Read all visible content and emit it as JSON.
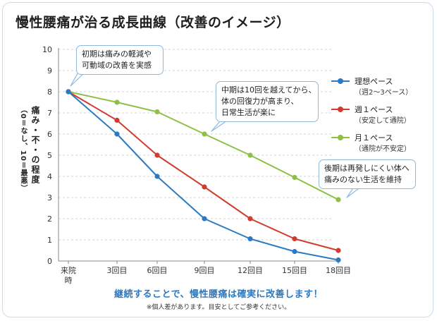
{
  "title": "慢性腰痛が治る成長曲線（改善のイメージ）",
  "chart_data": {
    "type": "line",
    "title": "慢性腰痛が治る成長曲線（改善のイメージ）",
    "ylabel": "痛み・不・の程度",
    "ylabel_sub": "（0＝なし、10＝最悪）",
    "xlabel": "",
    "ylim": [
      0,
      10
    ],
    "yticks": [
      "0",
      "1",
      "2",
      "3",
      "4",
      "5",
      "6",
      "7",
      "8",
      "9",
      "10"
    ],
    "categories": [
      "来院時",
      "3回目",
      "6回目",
      "9回目",
      "12回目",
      "15回目",
      "18回目"
    ],
    "grid": true,
    "legend_position": "right",
    "series": [
      {
        "name": "理想ペース",
        "note": "（週2〜3ペース）",
        "color": "#2a7ac4",
        "values": [
          8,
          6,
          4,
          2,
          1.05,
          0.45,
          0.05
        ]
      },
      {
        "name": "週１ペース",
        "note": "（安定して通院）",
        "color": "#d13b30",
        "values": [
          8,
          6.65,
          5,
          3.5,
          2,
          1.05,
          0.5
        ]
      },
      {
        "name": "月１ペース",
        "note": "（通院が不安定）",
        "color": "#8dc043",
        "values": [
          8,
          7.5,
          7.05,
          6,
          5,
          3.95,
          2.9
        ]
      }
    ]
  },
  "callouts": {
    "early": [
      "初期は痛みの軽減や",
      "可動域の改善を実感"
    ],
    "middle": [
      "中期は10回を越えてから、",
      "体の回復力が高まり、",
      "日常生活が楽に"
    ],
    "late": [
      "後期は再発しにくい体へ",
      "痛みのない生活を維持"
    ]
  },
  "footer": {
    "main": "継続することで、慢性腰痛は確実に改善します！",
    "note": "※個人差があります。目安としてご参考ください。"
  }
}
